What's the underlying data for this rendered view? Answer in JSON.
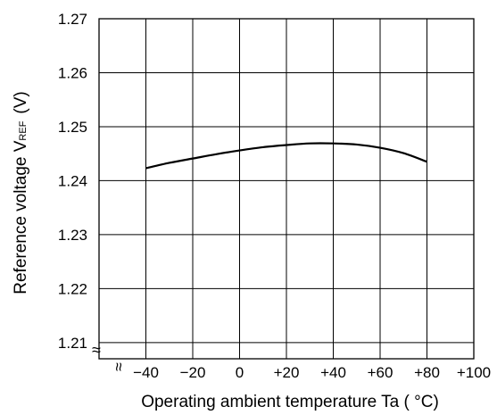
{
  "chart_data": {
    "type": "line",
    "xlabel": "Operating ambient temperature Ta ( °C)",
    "ylabel_main": "Reference voltage V",
    "ylabel_sub": "REF",
    "ylabel_unit": "(V)",
    "x_ticks": [
      "−40",
      "−20",
      "0",
      "+20",
      "+40",
      "+60",
      "+80",
      "+100"
    ],
    "y_ticks": [
      "1.27",
      "1.26",
      "1.25",
      "1.24",
      "1.23",
      "1.22",
      "1.21"
    ],
    "xlim": [
      -60,
      100
    ],
    "ylim": [
      1.207,
      1.27
    ],
    "grid": true,
    "axis_break_symbols": "≈",
    "series": [
      {
        "x": [
          -40,
          -30,
          -20,
          -10,
          0,
          10,
          20,
          30,
          40,
          50,
          60,
          70,
          80
        ],
        "y": [
          1.2423,
          1.2433,
          1.2441,
          1.2449,
          1.2456,
          1.2462,
          1.2466,
          1.2469,
          1.2469,
          1.2467,
          1.2461,
          1.2451,
          1.2435
        ]
      }
    ]
  }
}
